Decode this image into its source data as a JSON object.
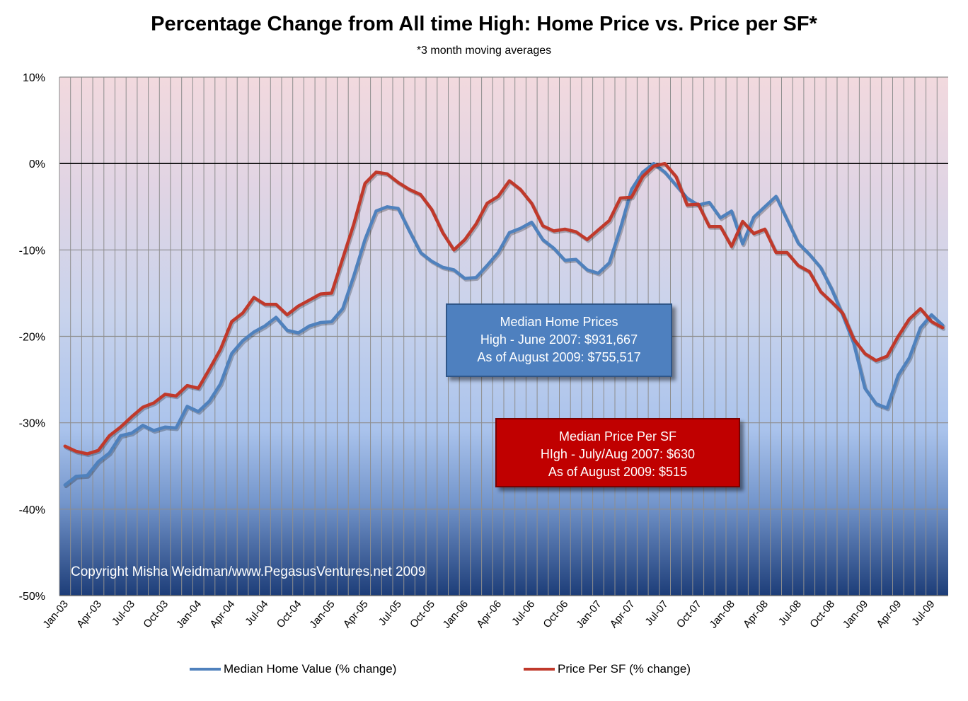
{
  "title": "Percentage Change from All time High:  Home Price vs. Price per SF*",
  "subtitle": "*3 month moving averages",
  "copyright": "Copyright Misha Weidman/www.PegasusVentures.net 2009",
  "colors": {
    "home_value": "#4f81bd",
    "price_per_sf": "#c0392b",
    "callout_home_bg": "#4e80bf",
    "callout_psf_bg": "#c00000"
  },
  "callouts": {
    "home": {
      "line1": "Median Home Prices",
      "line2": "High  -  June 2007:  $931,667",
      "line3": "As of August 2009:  $755,517"
    },
    "psf": {
      "line1": "Median Price Per SF",
      "line2": "HIgh - July/Aug 2007:  $630",
      "line3": "As of August 2009:  $515"
    }
  },
  "chart_data": {
    "type": "line",
    "title": "Percentage Change from All time High:  Home Price vs. Price per SF*",
    "subtitle": "*3 month moving averages",
    "xlabel": "",
    "ylabel": "",
    "ylim": [
      -50,
      10
    ],
    "y_ticks": [
      10,
      0,
      -10,
      -20,
      -30,
      -40,
      -50
    ],
    "y_tick_labels": [
      "10%",
      "0%",
      "-10%",
      "-20%",
      "-30%",
      "-40%",
      "-50%"
    ],
    "grid": true,
    "legend": "bottom",
    "x": [
      "Jan-03",
      "Feb-03",
      "Mar-03",
      "Apr-03",
      "May-03",
      "Jun-03",
      "Jul-03",
      "Aug-03",
      "Sep-03",
      "Oct-03",
      "Nov-03",
      "Dec-03",
      "Jan-04",
      "Feb-04",
      "Mar-04",
      "Apr-04",
      "May-04",
      "Jun-04",
      "Jul-04",
      "Aug-04",
      "Sep-04",
      "Oct-04",
      "Nov-04",
      "Dec-04",
      "Jan-05",
      "Feb-05",
      "Mar-05",
      "Apr-05",
      "May-05",
      "Jun-05",
      "Jul-05",
      "Aug-05",
      "Sep-05",
      "Oct-05",
      "Nov-05",
      "Dec-05",
      "Jan-06",
      "Feb-06",
      "Mar-06",
      "Apr-06",
      "May-06",
      "Jun-06",
      "Jul-06",
      "Aug-06",
      "Sep-06",
      "Oct-06",
      "Nov-06",
      "Dec-06",
      "Jan-07",
      "Feb-07",
      "Mar-07",
      "Apr-07",
      "May-07",
      "Jun-07",
      "Jul-07",
      "Aug-07",
      "Sep-07",
      "Oct-07",
      "Nov-07",
      "Dec-07",
      "Jan-08",
      "Feb-08",
      "Mar-08",
      "Apr-08",
      "May-08",
      "Jun-08",
      "Jul-08",
      "Aug-08",
      "Sep-08",
      "Oct-08",
      "Nov-08",
      "Dec-08",
      "Jan-09",
      "Feb-09",
      "Mar-09",
      "Apr-09",
      "May-09",
      "Jun-09",
      "Jul-09",
      "Aug-09"
    ],
    "x_tick_labels": [
      "Jan-03",
      "Apr-03",
      "Jul-03",
      "Oct-03",
      "Jan-04",
      "Apr-04",
      "Jul-04",
      "Oct-04",
      "Jan-05",
      "Apr-05",
      "Jul-05",
      "Oct-05",
      "Jan-06",
      "Apr-06",
      "Jul-06",
      "Oct-06",
      "Jan-07",
      "Apr-07",
      "Jul-07",
      "Oct-07",
      "Jan-08",
      "Apr-08",
      "Jul-08",
      "Oct-08",
      "Jan-09",
      "Apr-09",
      "Jul-09"
    ],
    "series": [
      {
        "name": "Median Home Value (% change)",
        "color": "#4f81bd",
        "values": [
          -37.2,
          -36.2,
          -36.1,
          -34.5,
          -33.5,
          -31.5,
          -31.2,
          -30.3,
          -30.9,
          -30.5,
          -30.6,
          -28.1,
          -28.7,
          -27.5,
          -25.5,
          -22.0,
          -20.5,
          -19.5,
          -18.8,
          -17.8,
          -19.3,
          -19.6,
          -18.8,
          -18.4,
          -18.3,
          -16.8,
          -13.0,
          -8.8,
          -5.5,
          -5.0,
          -5.2,
          -7.8,
          -10.3,
          -11.3,
          -12.0,
          -12.3,
          -13.3,
          -13.2,
          -11.8,
          -10.3,
          -8.0,
          -7.5,
          -6.8,
          -8.8,
          -9.8,
          -11.2,
          -11.1,
          -12.3,
          -12.7,
          -11.5,
          -7.5,
          -3.0,
          -1.0,
          0.0,
          -1.0,
          -2.5,
          -4.0,
          -4.8,
          -4.5,
          -6.3,
          -5.5,
          -9.3,
          -6.2,
          -5.0,
          -3.8,
          -6.5,
          -9.2,
          -10.5,
          -12.0,
          -14.5,
          -17.5,
          -20.8,
          -26.0,
          -27.8,
          -28.3,
          -24.5,
          -22.5,
          -19.0,
          -17.5,
          -18.7
        ]
      },
      {
        "name": "Price Per SF (% change)",
        "color": "#c0392b",
        "values": [
          -32.7,
          -33.3,
          -33.6,
          -33.2,
          -31.5,
          -30.5,
          -29.3,
          -28.2,
          -27.7,
          -26.7,
          -26.9,
          -25.7,
          -26.0,
          -23.8,
          -21.5,
          -18.3,
          -17.3,
          -15.5,
          -16.3,
          -16.3,
          -17.5,
          -16.5,
          -15.8,
          -15.1,
          -15.0,
          -11.0,
          -7.0,
          -2.3,
          -1.0,
          -1.2,
          -2.2,
          -3.0,
          -3.6,
          -5.3,
          -8.0,
          -10.0,
          -8.8,
          -7.0,
          -4.6,
          -3.8,
          -2.0,
          -3.0,
          -4.6,
          -7.2,
          -7.8,
          -7.6,
          -7.9,
          -8.8,
          -7.7,
          -6.6,
          -4.0,
          -3.9,
          -1.5,
          -0.3,
          0.0,
          -1.5,
          -4.8,
          -4.7,
          -7.3,
          -7.3,
          -9.6,
          -6.7,
          -8.1,
          -7.6,
          -10.3,
          -10.3,
          -11.8,
          -12.5,
          -14.8,
          -16.0,
          -17.3,
          -20.3,
          -22.0,
          -22.8,
          -22.3,
          -20.0,
          -18.0,
          -16.8,
          -18.3,
          -19.0
        ]
      }
    ]
  }
}
